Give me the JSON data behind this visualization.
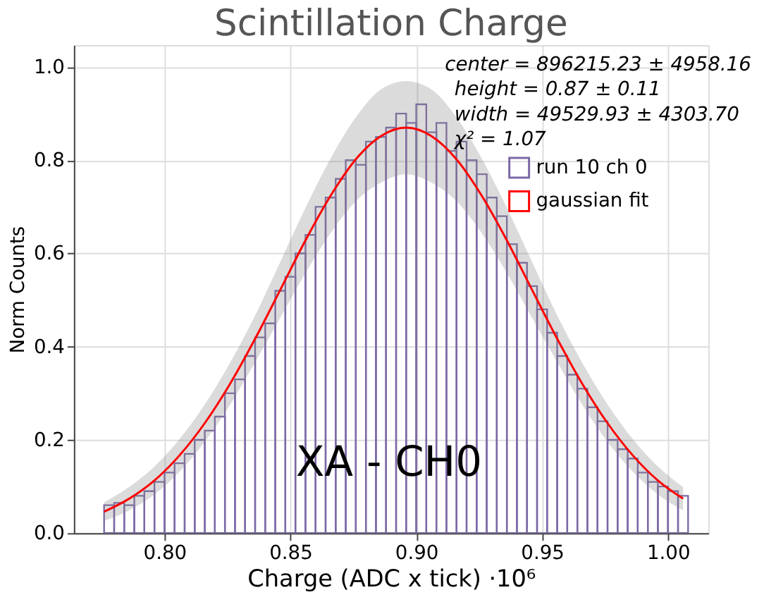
{
  "chart_data": {
    "type": "histogram",
    "title": "Scintillation Charge",
    "xlabel": "Charge (ADC x tick) ·10⁶",
    "ylabel": "Norm Counts",
    "bins": [
      0.776,
      0.78,
      0.784,
      0.788,
      0.792,
      0.796,
      0.8,
      0.804,
      0.808,
      0.812,
      0.816,
      0.82,
      0.824,
      0.828,
      0.832,
      0.836,
      0.84,
      0.844,
      0.848,
      0.852,
      0.856,
      0.86,
      0.864,
      0.868,
      0.872,
      0.876,
      0.88,
      0.884,
      0.888,
      0.892,
      0.896,
      0.9,
      0.904,
      0.908,
      0.912,
      0.916,
      0.92,
      0.924,
      0.928,
      0.932,
      0.936,
      0.94,
      0.944,
      0.948,
      0.952,
      0.956,
      0.96,
      0.964,
      0.968,
      0.972,
      0.976,
      0.98,
      0.984,
      0.988,
      0.992,
      0.996,
      1.0,
      1.004,
      1.008
    ],
    "series": [
      {
        "name": "run 10 ch 0",
        "color": "#7b68a6",
        "values": [
          0.06,
          0.065,
          0.06,
          0.08,
          0.09,
          0.11,
          0.13,
          0.15,
          0.17,
          0.2,
          0.22,
          0.25,
          0.3,
          0.33,
          0.38,
          0.42,
          0.45,
          0.52,
          0.55,
          0.6,
          0.64,
          0.7,
          0.72,
          0.76,
          0.8,
          0.79,
          0.84,
          0.85,
          0.87,
          0.9,
          0.88,
          0.92,
          0.86,
          0.88,
          0.82,
          0.84,
          0.8,
          0.77,
          0.72,
          0.68,
          0.62,
          0.58,
          0.53,
          0.48,
          0.43,
          0.38,
          0.34,
          0.31,
          0.27,
          0.24,
          0.2,
          0.18,
          0.16,
          0.13,
          0.11,
          0.1,
          0.09,
          0.08
        ]
      },
      {
        "name": "gaussian fit",
        "type": "line",
        "color": "#ff0000",
        "x": [
          0.776,
          0.786,
          0.796,
          0.806,
          0.816,
          0.826,
          0.836,
          0.846,
          0.856,
          0.866,
          0.876,
          0.886,
          0.896,
          0.906,
          0.916,
          0.926,
          0.936,
          0.946,
          0.956,
          0.966,
          0.976,
          0.986,
          0.996,
          1.006
        ],
        "values": [
          0.046,
          0.074,
          0.113,
          0.167,
          0.236,
          0.32,
          0.417,
          0.522,
          0.628,
          0.724,
          0.802,
          0.852,
          0.87,
          0.852,
          0.802,
          0.724,
          0.628,
          0.522,
          0.417,
          0.32,
          0.236,
          0.167,
          0.113,
          0.074
        ],
        "lower": [
          0.026,
          0.049,
          0.083,
          0.132,
          0.196,
          0.275,
          0.367,
          0.462,
          0.558,
          0.644,
          0.712,
          0.752,
          0.77,
          0.752,
          0.712,
          0.644,
          0.558,
          0.462,
          0.367,
          0.275,
          0.196,
          0.132,
          0.083,
          0.049
        ],
        "upper": [
          0.066,
          0.099,
          0.143,
          0.202,
          0.276,
          0.365,
          0.467,
          0.582,
          0.698,
          0.804,
          0.892,
          0.952,
          0.97,
          0.952,
          0.892,
          0.804,
          0.698,
          0.582,
          0.467,
          0.365,
          0.276,
          0.202,
          0.143,
          0.099
        ]
      }
    ],
    "xlim": [
      0.764,
      1.016
    ],
    "xticks": [
      {
        "value": 0.8,
        "label": "0.80"
      },
      {
        "value": 0.85,
        "label": "0.85"
      },
      {
        "value": 0.9,
        "label": "0.90"
      },
      {
        "value": 0.95,
        "label": "0.95"
      },
      {
        "value": 1.0,
        "label": "1.00"
      }
    ],
    "ylim": [
      0,
      1.047
    ],
    "yticks": [
      {
        "value": 0,
        "label": "0.0"
      },
      {
        "value": 0.2,
        "label": "0.2"
      },
      {
        "value": 0.4,
        "label": "0.4"
      },
      {
        "value": 0.6,
        "label": "0.6"
      },
      {
        "value": 0.8,
        "label": "0.8"
      },
      {
        "value": 1.0,
        "label": "1.0"
      }
    ],
    "grid": true,
    "legend": "top right",
    "annotations": [
      "center = 896215.23 ± 4958.16",
      "height = 0.87 ± 0.11",
      "width = 49529.93 ± 4303.70",
      "χ² = 1.07",
      "XA - CH0"
    ]
  }
}
